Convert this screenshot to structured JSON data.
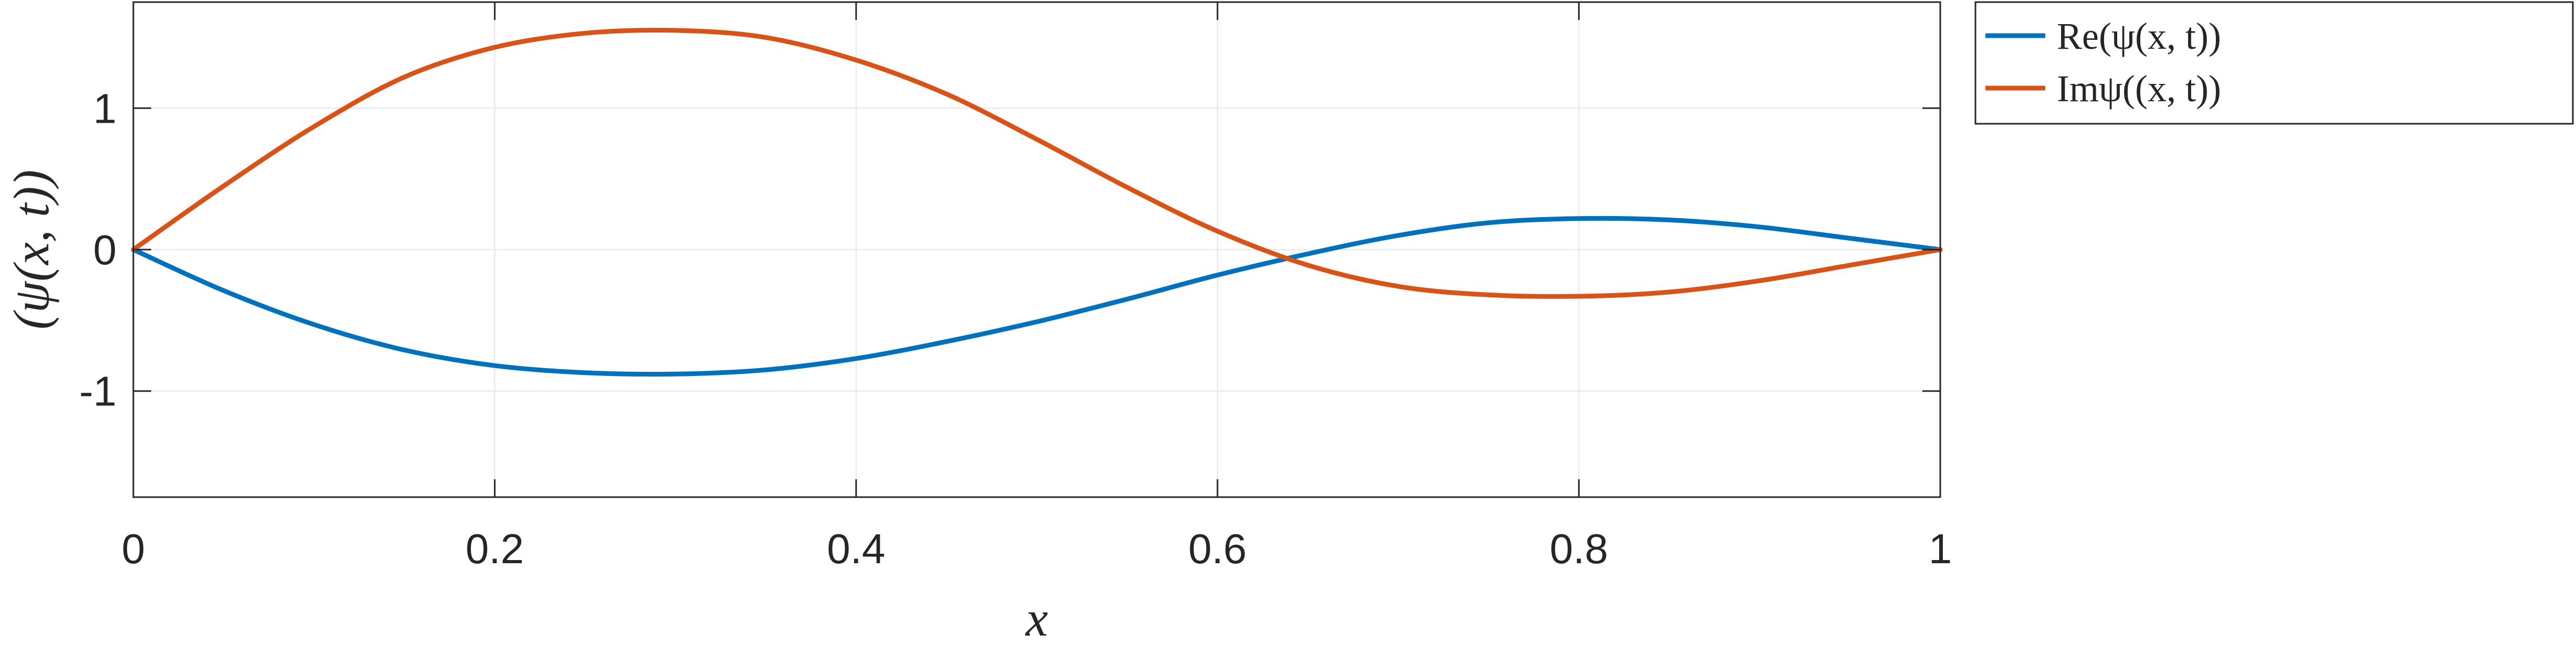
{
  "chart_data": {
    "type": "line",
    "title": "",
    "xlabel": "x",
    "ylabel": "(ψ(x, t))",
    "xlim": [
      0,
      1
    ],
    "ylim": [
      -1.75,
      1.75
    ],
    "xticks": [
      0,
      0.2,
      0.4,
      0.6,
      0.8,
      1
    ],
    "xtick_labels": [
      "0",
      "0.2",
      "0.4",
      "0.6",
      "0.8",
      "1"
    ],
    "yticks": [
      1,
      0,
      -1
    ],
    "ytick_labels": [
      "1",
      "0",
      "-1"
    ],
    "grid": true,
    "legend_placement": "outside-top-right",
    "x": [
      0,
      0.05,
      0.1,
      0.15,
      0.2,
      0.25,
      0.3,
      0.35,
      0.4,
      0.45,
      0.5,
      0.55,
      0.6,
      0.65,
      0.7,
      0.75,
      0.8,
      0.85,
      0.9,
      0.95,
      1
    ],
    "series": [
      {
        "name": "Re(ψ(x, t))",
        "color": "#0072BD",
        "values": [
          0,
          -0.29,
          -0.53,
          -0.71,
          -0.82,
          -0.87,
          -0.88,
          -0.85,
          -0.77,
          -0.65,
          -0.51,
          -0.35,
          -0.18,
          -0.03,
          0.1,
          0.19,
          0.22,
          0.21,
          0.16,
          0.08,
          0
        ]
      },
      {
        "name": "Imψ((x, t))",
        "color": "#D95319",
        "values": [
          0,
          0.45,
          0.87,
          1.22,
          1.43,
          1.53,
          1.55,
          1.5,
          1.34,
          1.1,
          0.78,
          0.44,
          0.13,
          -0.11,
          -0.26,
          -0.32,
          -0.33,
          -0.3,
          -0.22,
          -0.11,
          0
        ]
      }
    ]
  }
}
